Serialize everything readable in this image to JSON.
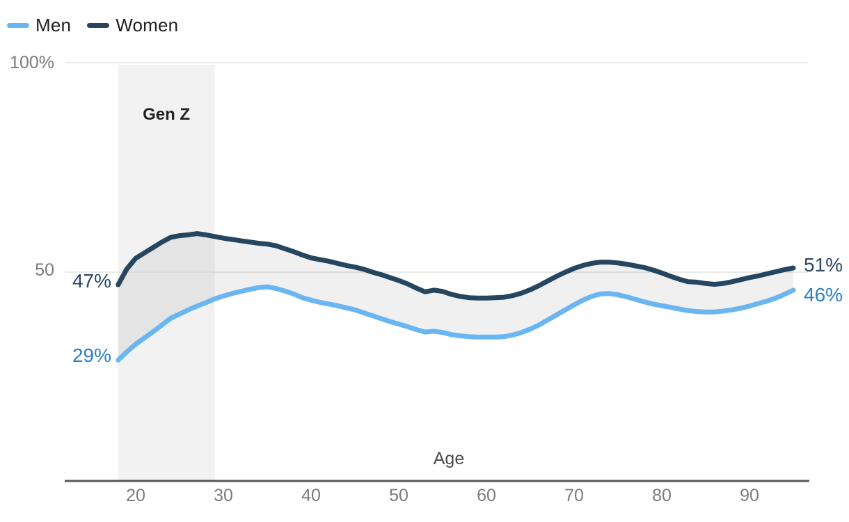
{
  "legend": {
    "items": [
      {
        "label": "Men",
        "color": "#6ab6f3"
      },
      {
        "label": "Women",
        "color": "#26455f"
      }
    ]
  },
  "chart_data": {
    "type": "line",
    "title": "",
    "xlabel": "Age",
    "ylabel": "",
    "ylim": [
      0,
      100
    ],
    "grid": "horizontal-only",
    "legend_position": "top-left",
    "x_ticks": [
      {
        "label": "20",
        "value": 20
      },
      {
        "label": "30",
        "value": 30
      },
      {
        "label": "40",
        "value": 40
      },
      {
        "label": "50",
        "value": 50
      },
      {
        "label": "60",
        "value": 60
      },
      {
        "label": "70",
        "value": 70
      },
      {
        "label": "80",
        "value": 80
      },
      {
        "label": "90",
        "value": 90
      }
    ],
    "y_ticks": [
      {
        "label": "100%",
        "value": 100
      },
      {
        "label": "50",
        "value": 50
      }
    ],
    "annotation_band": {
      "label": "Gen Z",
      "x_start": 18,
      "x_end": 29,
      "color": "#f2f2f2"
    },
    "area_between_fill": "rgba(60,60,60,0.075)",
    "gridline_color": "#e9e9e9",
    "axis_line_color": "#56585a",
    "x": [
      18,
      19,
      20,
      21,
      22,
      23,
      24,
      25,
      26,
      27,
      28,
      29,
      30,
      31,
      32,
      33,
      34,
      35,
      36,
      37,
      38,
      39,
      40,
      41,
      42,
      43,
      44,
      45,
      46,
      47,
      48,
      49,
      50,
      51,
      52,
      53,
      54,
      55,
      56,
      57,
      58,
      59,
      60,
      61,
      62,
      63,
      64,
      65,
      66,
      67,
      68,
      69,
      70,
      71,
      72,
      73,
      74,
      75,
      76,
      77,
      78,
      79,
      80,
      81,
      82,
      83,
      84,
      85,
      86,
      87,
      88,
      89,
      90,
      91,
      92,
      93,
      94,
      95
    ],
    "series": [
      {
        "name": "Men",
        "color": "#6ab6f3",
        "label_color": "#2b80c0",
        "start_label": "29%",
        "end_label": "46%",
        "values": [
          29.0,
          31.0,
          32.8,
          34.3,
          35.8,
          37.4,
          39.0,
          40.0,
          41.0,
          41.9,
          42.7,
          43.6,
          44.3,
          44.9,
          45.4,
          45.9,
          46.3,
          46.5,
          46.1,
          45.5,
          44.8,
          43.9,
          43.3,
          42.8,
          42.4,
          42.0,
          41.5,
          41.0,
          40.3,
          39.6,
          38.9,
          38.2,
          37.6,
          37.0,
          36.3,
          35.7,
          35.9,
          35.6,
          35.1,
          34.8,
          34.6,
          34.5,
          34.5,
          34.5,
          34.6,
          35.0,
          35.6,
          36.4,
          37.4,
          38.6,
          39.8,
          41.0,
          42.2,
          43.3,
          44.2,
          44.8,
          44.9,
          44.6,
          44.1,
          43.5,
          42.9,
          42.4,
          42.0,
          41.6,
          41.2,
          40.8,
          40.6,
          40.5,
          40.5,
          40.7,
          41.0,
          41.4,
          41.9,
          42.5,
          43.1,
          43.8,
          44.7,
          45.7
        ]
      },
      {
        "name": "Women",
        "color": "#26455f",
        "label_color": "#2a4763",
        "start_label": "47%",
        "end_label": "51%",
        "values": [
          47.0,
          50.8,
          53.3,
          54.6,
          55.9,
          57.2,
          58.3,
          58.7,
          58.9,
          59.2,
          58.9,
          58.5,
          58.1,
          57.8,
          57.5,
          57.2,
          56.9,
          56.7,
          56.3,
          55.6,
          54.9,
          54.1,
          53.4,
          53.0,
          52.6,
          52.1,
          51.6,
          51.2,
          50.7,
          50.0,
          49.4,
          48.7,
          48.0,
          47.2,
          46.2,
          45.3,
          45.7,
          45.4,
          44.7,
          44.2,
          43.9,
          43.8,
          43.8,
          43.9,
          44.0,
          44.4,
          45.0,
          45.8,
          46.8,
          47.9,
          49.0,
          50.0,
          50.9,
          51.6,
          52.1,
          52.4,
          52.4,
          52.2,
          51.9,
          51.5,
          51.1,
          50.5,
          49.8,
          49.0,
          48.3,
          47.7,
          47.6,
          47.3,
          47.1,
          47.3,
          47.7,
          48.2,
          48.7,
          49.1,
          49.6,
          50.1,
          50.6,
          51.0
        ]
      }
    ]
  }
}
